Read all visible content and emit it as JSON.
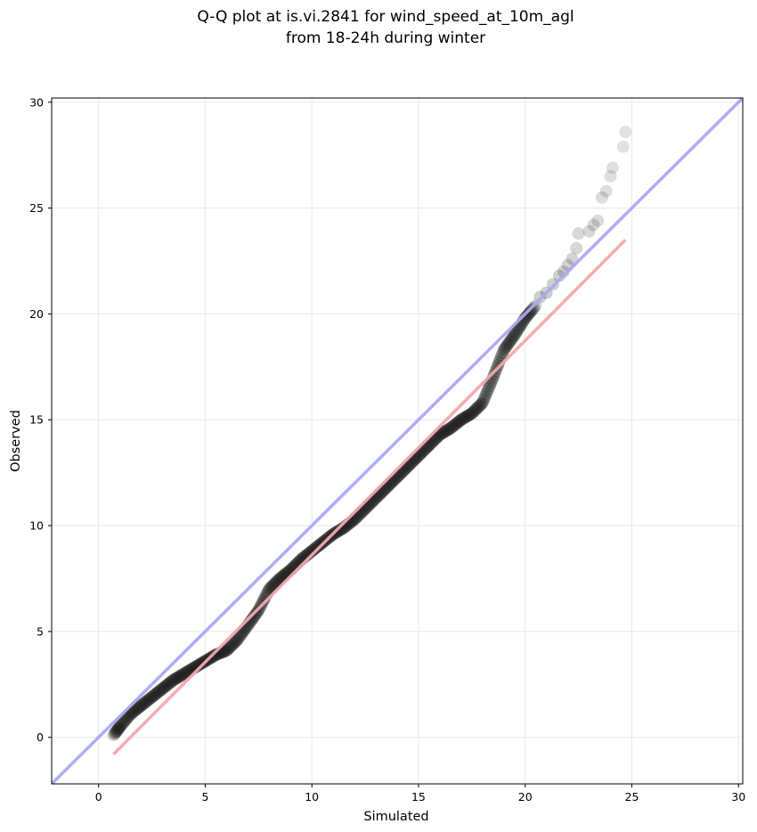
{
  "chart_data": {
    "type": "scatter",
    "title": [
      "Q-Q plot at is.vi.2841 for wind_speed_at_10m_agl",
      "from 18-24h during winter"
    ],
    "xlabel": "Simulated",
    "ylabel": "Observed",
    "xlim": [
      -2.2,
      30.2
    ],
    "ylim": [
      -2.2,
      30.2
    ],
    "xticks": [
      0,
      5,
      10,
      15,
      20,
      25,
      30
    ],
    "yticks": [
      0,
      5,
      10,
      15,
      20,
      25,
      30
    ],
    "grid": true,
    "colors": {
      "points": "#1a1a1a",
      "identity_line": "#a8abf3",
      "fit_line": "#f2a8a8",
      "frame": "#000000",
      "grid": "#ebebeb"
    },
    "identity_line": {
      "x": [
        -2.2,
        30.2
      ],
      "y": [
        -2.2,
        30.2
      ]
    },
    "fit_line": {
      "x": [
        0.7,
        24.7
      ],
      "y": [
        -0.8,
        23.5
      ]
    },
    "qq_curve": {
      "x": [
        0.7,
        1.0,
        1.5,
        2.0,
        2.5,
        3.0,
        3.5,
        4.0,
        4.5,
        5.0,
        5.5,
        6.0,
        6.5,
        7.0,
        7.5,
        8.0,
        8.5,
        9.0,
        9.5,
        10.0,
        10.5,
        11.0,
        11.5,
        12.0,
        12.5,
        13.0,
        13.5,
        14.0,
        14.5,
        15.0,
        15.5,
        16.0,
        16.5,
        17.0,
        17.5,
        18.0,
        18.5,
        19.0,
        19.5,
        20.0,
        20.5
      ],
      "y": [
        0.1,
        0.5,
        1.1,
        1.5,
        1.9,
        2.3,
        2.7,
        3.0,
        3.3,
        3.6,
        3.9,
        4.1,
        4.6,
        5.3,
        6.0,
        7.0,
        7.5,
        7.9,
        8.4,
        8.8,
        9.2,
        9.6,
        9.9,
        10.3,
        10.8,
        11.3,
        11.8,
        12.3,
        12.8,
        13.3,
        13.8,
        14.3,
        14.6,
        15.0,
        15.3,
        15.8,
        17.0,
        18.3,
        19.0,
        19.8,
        20.4
      ]
    },
    "tail_points": {
      "x": [
        20.7,
        21.0,
        21.3,
        21.6,
        21.8,
        22.0,
        22.2,
        22.4,
        22.5,
        23.0,
        23.2,
        23.4,
        23.6,
        23.8,
        24.0,
        24.1,
        24.6,
        24.7
      ],
      "y": [
        20.8,
        21.0,
        21.4,
        21.8,
        22.0,
        22.3,
        22.6,
        23.1,
        23.8,
        23.9,
        24.2,
        24.4,
        25.5,
        25.8,
        26.5,
        26.9,
        27.9,
        28.6
      ]
    }
  }
}
